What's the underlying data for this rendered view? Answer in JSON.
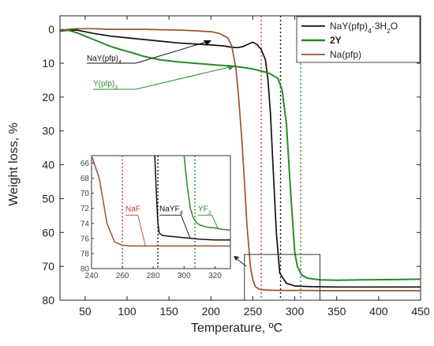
{
  "chart_data": {
    "type": "line",
    "title": "",
    "xlabel": "Temperature, ºC",
    "ylabel": "Weight loss, %",
    "xlim": [
      20,
      450
    ],
    "ylim": [
      80,
      -4
    ],
    "x_ticks": [
      50,
      100,
      150,
      200,
      250,
      300,
      350,
      400,
      450
    ],
    "y_ticks": [
      0,
      10,
      20,
      30,
      40,
      50,
      60,
      70,
      80
    ],
    "y_reversed": true,
    "legend_position": "top-right",
    "series": [
      {
        "name": "NaY(pfp)4·3H2O",
        "legend_main": "NaY(pfp)",
        "legend_sub": "4",
        "legend_tail": "·3H",
        "legend_sub2": "2",
        "legend_tail2": "O",
        "color": "#111111",
        "x": [
          20,
          30,
          40,
          60,
          80,
          100,
          120,
          140,
          160,
          180,
          200,
          215,
          225,
          232,
          238,
          245,
          250,
          255,
          260,
          265,
          268,
          271,
          274,
          278,
          282,
          290,
          300,
          320,
          350,
          400,
          450
        ],
        "y": [
          0.5,
          0.3,
          0.2,
          1.2,
          2.0,
          2.5,
          3.0,
          3.5,
          4.0,
          4.3,
          4.6,
          4.9,
          5.3,
          5.4,
          5.1,
          4.3,
          3.8,
          4.5,
          6.0,
          9.0,
          15.0,
          25.0,
          40.0,
          60.0,
          72.0,
          75.0,
          75.8,
          76.0,
          76.1,
          76.1,
          76.1
        ]
      },
      {
        "name": "2Y",
        "legend_main": "2Y",
        "color": "#2a8a2a",
        "x": [
          20,
          25,
          30,
          40,
          50,
          60,
          70,
          80,
          90,
          100,
          110,
          120,
          130,
          140,
          150,
          160,
          170,
          180,
          190,
          200,
          210,
          220,
          230,
          240,
          250,
          260,
          270,
          280,
          285,
          290,
          295,
          300,
          303,
          308,
          315,
          330,
          350,
          380,
          420,
          450
        ],
        "y": [
          0.3,
          0.2,
          0.3,
          1.0,
          2.0,
          3.0,
          4.0,
          5.0,
          5.8,
          6.5,
          7.2,
          8.0,
          8.5,
          9.0,
          9.3,
          9.6,
          9.8,
          10.0,
          10.2,
          10.4,
          10.6,
          10.8,
          11.0,
          11.3,
          11.7,
          12.3,
          13.0,
          14.5,
          18.0,
          28.0,
          48.0,
          66.0,
          70.0,
          72.5,
          73.5,
          74.0,
          74.1,
          74.0,
          73.9,
          73.8
        ]
      },
      {
        "name": "Na(pfp)",
        "legend_main": "Na(pfp)",
        "color": "#a0522d",
        "x": [
          20,
          30,
          40,
          60,
          80,
          100,
          120,
          140,
          160,
          180,
          200,
          210,
          220,
          225,
          230,
          233,
          237,
          240,
          243,
          247,
          250,
          253,
          258,
          265,
          280,
          300,
          350,
          400,
          450
        ],
        "y": [
          0.3,
          0.0,
          -0.2,
          -0.2,
          0.0,
          0.0,
          0.0,
          0.1,
          0.2,
          0.4,
          0.7,
          1.2,
          2.5,
          5.0,
          12.0,
          20.0,
          33.0,
          45.0,
          58.0,
          70.0,
          74.0,
          76.0,
          76.8,
          77.0,
          77.1,
          77.1,
          77.2,
          77.2,
          77.2
        ]
      }
    ],
    "vlines": [
      {
        "x": 260,
        "color": "#c23b3b"
      },
      {
        "x": 283,
        "color": "#111111"
      },
      {
        "x": 307,
        "color": "#2a8a2a"
      }
    ],
    "annotations": [
      {
        "main": "NaY(pfp)",
        "sub": "4",
        "color": "#111111"
      },
      {
        "main": "Y(pfp)",
        "sub": "3",
        "color": "#2a8a2a"
      }
    ],
    "inset": {
      "xlim": [
        240,
        330
      ],
      "ylim": [
        80,
        65
      ],
      "x_ticks": [
        240,
        260,
        280,
        300,
        320
      ],
      "y_ticks": [
        66,
        68,
        70,
        72,
        74,
        76,
        78,
        80
      ],
      "labels": [
        {
          "main": "NaF",
          "sub": "",
          "color": "#c23b3b"
        },
        {
          "main": "NaYF",
          "sub": "4",
          "color": "#111111"
        },
        {
          "main": "YF",
          "sub": "3",
          "color": "#2a8a2a"
        }
      ],
      "series": [
        {
          "name": "Na(pfp)",
          "color": "#a0522d",
          "x": [
            240,
            245,
            250,
            255,
            260,
            265,
            270,
            275,
            280,
            300,
            330
          ],
          "y": [
            65,
            68,
            74,
            76.5,
            76.9,
            77.0,
            77.0,
            77.0,
            77.0,
            77.0,
            77.0
          ]
        },
        {
          "name": "NaY(pfp)4·3H2O",
          "color": "#111111",
          "x": [
            281,
            282,
            283,
            284,
            286,
            290,
            300,
            310,
            320,
            330
          ],
          "y": [
            65,
            70,
            74,
            75.3,
            75.6,
            75.7,
            75.9,
            76.1,
            76.2,
            76.2
          ]
        },
        {
          "name": "2Y",
          "color": "#2a8a2a",
          "x": [
            300,
            302,
            304,
            306,
            308,
            310,
            315,
            320,
            325,
            330
          ],
          "y": [
            65,
            69,
            72,
            73.3,
            73.9,
            74.2,
            74.5,
            74.6,
            74.8,
            74.9
          ]
        }
      ],
      "step_lines": [
        {
          "color": "#c23b3b",
          "x": [
            262,
            270,
            275
          ],
          "y": [
            72.9,
            72.9,
            77.0
          ]
        },
        {
          "color": "#111111",
          "x": [
            284,
            298,
            304
          ],
          "y": [
            72.9,
            72.9,
            76.0
          ]
        },
        {
          "color": "#2a8a2a",
          "x": [
            309,
            318,
            322
          ],
          "y": [
            72.9,
            72.9,
            74.7
          ]
        }
      ]
    }
  }
}
